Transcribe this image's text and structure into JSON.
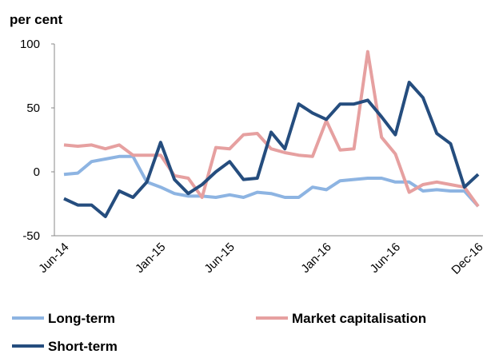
{
  "chart_data": {
    "type": "line",
    "y_label": "per cent",
    "categories": [
      "Jun-14",
      null,
      null,
      null,
      null,
      null,
      null,
      "Jan-15",
      null,
      null,
      null,
      null,
      "Jun-15",
      null,
      null,
      null,
      null,
      null,
      null,
      "Jan-16",
      null,
      null,
      null,
      null,
      "Jun-16",
      null,
      null,
      null,
      null,
      null,
      "Dec-16"
    ],
    "series": [
      {
        "name": "Long-term",
        "color": "#8db4e2",
        "values": [
          -2,
          -1,
          8,
          10,
          12,
          12,
          -8,
          -12,
          -17,
          -19,
          -19,
          -20,
          -18,
          -20,
          -16,
          -17,
          -20,
          -20,
          -12,
          -14,
          -7,
          -6,
          -5,
          -5,
          -8,
          -8,
          -15,
          -14,
          -15,
          -15,
          -27
        ]
      },
      {
        "name": "Market capitalisation",
        "color": "#e6a0a0",
        "values": [
          21,
          20,
          21,
          18,
          21,
          13,
          13,
          13,
          -3,
          -5,
          -20,
          19,
          18,
          29,
          30,
          18,
          15,
          13,
          12,
          40,
          17,
          18,
          94,
          27,
          14,
          -16,
          -10,
          -8,
          -10,
          -12,
          -27
        ]
      },
      {
        "name": "Short-term",
        "color": "#254d7e",
        "values": [
          -21,
          -26,
          -26,
          -35,
          -15,
          -20,
          -8,
          23,
          -6,
          -17,
          -10,
          0,
          8,
          -6,
          -5,
          31,
          18,
          53,
          46,
          41,
          53,
          53,
          56,
          43,
          29,
          70,
          58,
          30,
          22,
          -12,
          -2
        ]
      }
    ],
    "ylim": [
      -50,
      100
    ],
    "yticks": [
      -50,
      0,
      50,
      100
    ]
  }
}
